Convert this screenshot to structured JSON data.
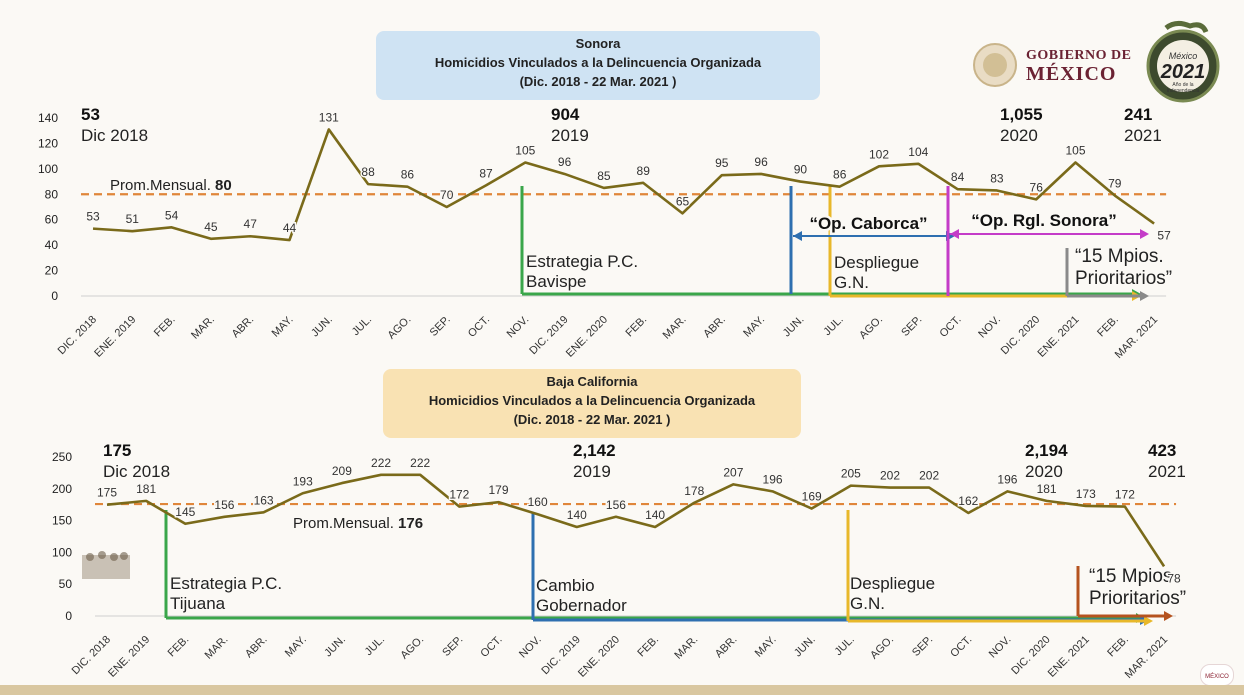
{
  "header": {
    "logo_text_line1": "GOBIERNO DE",
    "logo_text_line2": "MÉXICO",
    "badge_text_1": "México",
    "badge_text_2": "2021",
    "badge_text_3": "Año de la Independencia",
    "corner_badge": "MÉXICO"
  },
  "colors": {
    "line": "#7a6a1a",
    "avg": "#e0863a",
    "green": "#3aa64a",
    "blue": "#2e6fb0",
    "yellow": "#e8b82a",
    "purple": "#c43cc8",
    "gray": "#8a8a8a",
    "brown": "#b5531f",
    "sonora_box": "#cfe3f3",
    "bc_box": "#f9e2b3"
  },
  "chart_data": [
    {
      "type": "line",
      "title": "Sonora",
      "subtitle": "Homicidios Vinculados  a la Delincuencia Organizada",
      "period": "(Dic. 2018 - 22 Mar. 2021 )",
      "categories": [
        "DIC. 2018",
        "ENE. 2019",
        "FEB.",
        "MAR.",
        "ABR.",
        "MAY.",
        "JUN.",
        "JUL.",
        "AGO.",
        "SEP.",
        "OCT.",
        "NOV.",
        "DIC. 2019",
        "ENE. 2020",
        "FEB.",
        "MAR.",
        "ABR.",
        "MAY.",
        "JUN.",
        "JUL.",
        "AGO.",
        "SEP.",
        "OCT.",
        "NOV.",
        "DIC. 2020",
        "ENE. 2021",
        "FEB.",
        "MAR. 2021"
      ],
      "values": [
        53,
        51,
        54,
        45,
        47,
        44,
        131,
        88,
        86,
        70,
        87,
        105,
        96,
        85,
        89,
        65,
        95,
        96,
        90,
        86,
        102,
        104,
        84,
        83,
        76,
        105,
        79,
        57
      ],
      "ylim": [
        0,
        140
      ],
      "yticks": [
        0,
        20,
        40,
        60,
        80,
        100,
        120,
        140
      ],
      "average": {
        "label": "Prom.Mensual.",
        "value": 80
      },
      "totals": [
        {
          "big": "53",
          "small": "Dic 2018"
        },
        {
          "big": "904",
          "small": "2019"
        },
        {
          "big": "1,055",
          "small": "2020"
        },
        {
          "big": "241",
          "small": "2021"
        }
      ],
      "annotations": [
        {
          "lines": [
            "Estrategia P.C.",
            "Bavispe"
          ],
          "color": "green",
          "at": "NOV."
        },
        {
          "lines": [
            "Despliegue",
            "G.N."
          ],
          "color": "yellow",
          "at": "JUL."
        },
        {
          "lines": [
            "“Op. Caborca”"
          ],
          "color": "blue",
          "from": "JUN.",
          "to": "OCT."
        },
        {
          "lines": [
            "“Op. Rgl. Sonora”"
          ],
          "color": "purple",
          "from": "OCT.",
          "to": "MAR. 2021"
        },
        {
          "lines": [
            "“15 Mpios.",
            "Prioritarios”"
          ],
          "color": "gray",
          "at": "ENE. 2021"
        }
      ]
    },
    {
      "type": "line",
      "title": "Baja California",
      "subtitle": "Homicidios Vinculados  a la Delincuencia Organizada",
      "period": "(Dic. 2018 - 22 Mar. 2021 )",
      "categories": [
        "DIC. 2018",
        "ENE. 2019",
        "FEB.",
        "MAR.",
        "ABR.",
        "MAY.",
        "JUN.",
        "JUL.",
        "AGO.",
        "SEP.",
        "OCT.",
        "NOV.",
        "DIC. 2019",
        "ENE. 2020",
        "FEB.",
        "MAR.",
        "ABR.",
        "MAY.",
        "JUN.",
        "JUL.",
        "AGO.",
        "SEP.",
        "OCT.",
        "NOV.",
        "DIC. 2020",
        "ENE. 2021",
        "FEB.",
        "MAR. 2021"
      ],
      "values": [
        175,
        181,
        145,
        156,
        163,
        193,
        209,
        222,
        222,
        172,
        179,
        160,
        140,
        156,
        140,
        178,
        207,
        196,
        169,
        205,
        202,
        202,
        162,
        196,
        181,
        173,
        172,
        78
      ],
      "ylim": [
        0,
        250
      ],
      "yticks": [
        0,
        50,
        100,
        150,
        200,
        250
      ],
      "average": {
        "label": "Prom.Mensual.",
        "value": 176
      },
      "totals": [
        {
          "big": "175",
          "small": "Dic 2018"
        },
        {
          "big": "2,142",
          "small": "2019"
        },
        {
          "big": "2,194",
          "small": "2020"
        },
        {
          "big": "423",
          "small": "2021"
        }
      ],
      "annotations": [
        {
          "lines": [
            "Estrategia P.C.",
            "Tijuana"
          ],
          "color": "green",
          "at": "FEB."
        },
        {
          "lines": [
            "Cambio",
            "Gobernador"
          ],
          "color": "blue",
          "at": "NOV."
        },
        {
          "lines": [
            "Despliegue",
            "G.N."
          ],
          "color": "yellow",
          "at": "JUL."
        },
        {
          "lines": [
            "“15 Mpios.",
            "Prioritarios”"
          ],
          "color": "brown",
          "at": "ENE. 2021"
        }
      ]
    }
  ]
}
